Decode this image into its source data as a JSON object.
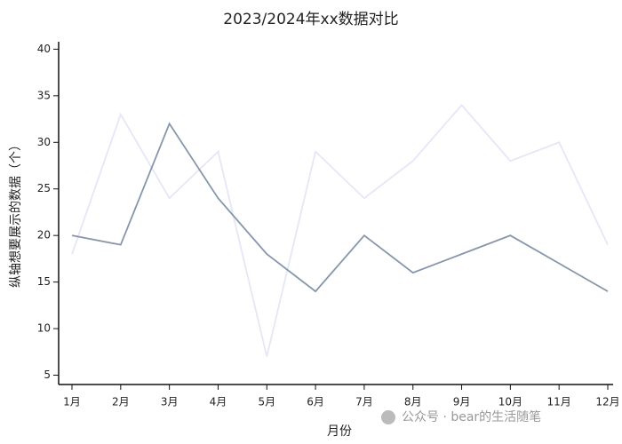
{
  "chart_data": {
    "type": "line",
    "title": "2023/2024年xx数据对比",
    "x_label": "月份",
    "y_label": "纵轴想要展示的数据（个）",
    "annotation": "公众号 · bear的生活随笔",
    "categories": [
      "1月",
      "2月",
      "3月",
      "4月",
      "5月",
      "6月",
      "7月",
      "8月",
      "9月",
      "10月",
      "11月",
      "12月"
    ],
    "series": [
      {
        "color": "#8796ab",
        "values": [
          20,
          19,
          32,
          24,
          18,
          14,
          20,
          16,
          18,
          20,
          17,
          14
        ]
      },
      {
        "color": "#e6e6f7",
        "values": [
          18,
          33,
          24,
          29,
          7,
          29,
          24,
          28,
          34,
          28,
          30,
          19
        ]
      }
    ],
    "ylim": [
      4,
      40.8
    ],
    "yticks": [
      5,
      10,
      15,
      20,
      25,
      30,
      35,
      40
    ]
  }
}
